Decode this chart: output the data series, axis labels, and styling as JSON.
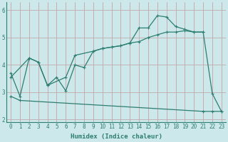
{
  "line1_x": [
    0,
    1,
    2,
    3,
    4,
    5,
    6,
    7,
    8,
    9,
    10,
    11,
    12,
    13,
    14,
    15,
    16,
    17,
    18,
    19,
    20,
    21,
    22,
    23
  ],
  "line1_y": [
    3.7,
    2.85,
    4.25,
    4.1,
    3.25,
    3.55,
    3.05,
    4.0,
    3.9,
    4.5,
    4.6,
    4.65,
    4.7,
    4.8,
    5.35,
    5.35,
    5.8,
    5.75,
    5.4,
    5.3,
    5.2,
    5.2,
    2.95,
    2.3
  ],
  "line2_x": [
    0,
    2,
    3,
    4,
    6,
    7,
    9,
    10,
    11,
    12,
    13,
    14,
    15,
    16,
    17,
    18,
    19,
    20,
    21
  ],
  "line2_y": [
    3.55,
    4.25,
    4.1,
    3.25,
    3.55,
    4.35,
    4.5,
    4.6,
    4.65,
    4.7,
    4.8,
    4.85,
    5.0,
    5.1,
    5.2,
    5.2,
    5.25,
    5.2,
    5.2
  ],
  "line3_x": [
    0,
    1,
    21,
    22,
    23
  ],
  "line3_y": [
    2.85,
    2.7,
    2.3,
    2.3,
    2.3
  ],
  "color": "#2e7d71",
  "bg_color": "#cce8ea",
  "grid_color_minor": "#b8d8da",
  "grid_color_major": "#c0c0a8",
  "xlabel": "Humidex (Indice chaleur)",
  "xlim": [
    -0.5,
    23.5
  ],
  "ylim": [
    1.9,
    6.3
  ],
  "xticks": [
    0,
    1,
    2,
    3,
    4,
    5,
    6,
    7,
    8,
    9,
    10,
    11,
    12,
    13,
    14,
    15,
    16,
    17,
    18,
    19,
    20,
    21,
    22,
    23
  ],
  "yticks": [
    2,
    3,
    4,
    5,
    6
  ],
  "label_fontsize": 6.5,
  "tick_fontsize": 5.5
}
